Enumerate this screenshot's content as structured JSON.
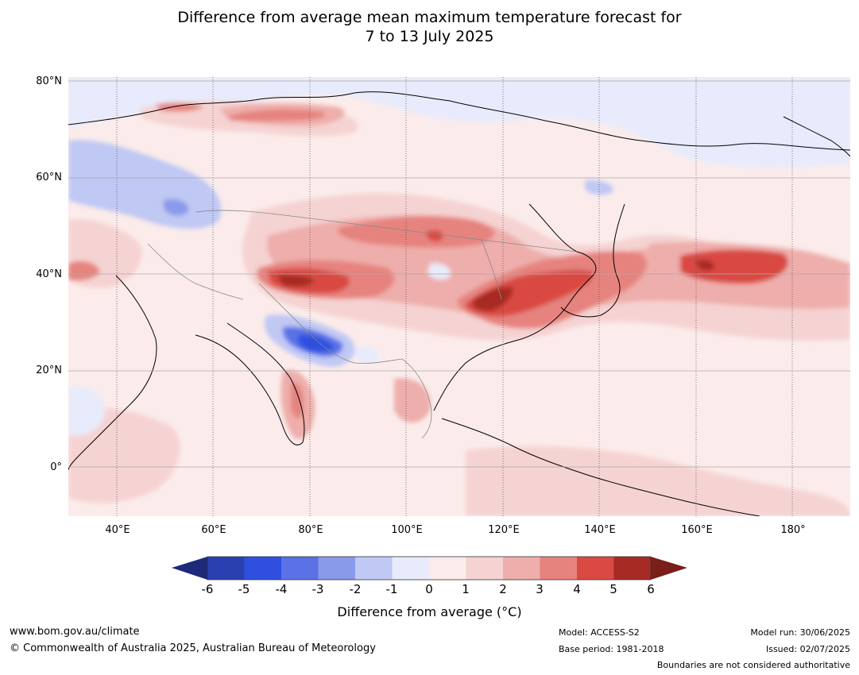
{
  "title": {
    "line1": "Difference from average mean maximum temperature forecast for",
    "line2": "7 to 13 July 2025"
  },
  "map": {
    "lat_labels": [
      "80°N",
      "60°N",
      "40°N",
      "20°N",
      "0°"
    ],
    "lon_labels": [
      "40°E",
      "60°E",
      "80°E",
      "100°E",
      "120°E",
      "140°E",
      "160°E",
      "180°"
    ],
    "lon_range": [
      30,
      192
    ],
    "lat_range": [
      -10,
      81
    ],
    "colors": {
      "neg6": "#1d2a7a",
      "neg5": "#2a3fb0",
      "neg4": "#2f4fe0",
      "neg3": "#5a72e6",
      "neg2": "#8a9aea",
      "neg1": "#c0c8f4",
      "zero_neg": "#e8ebfb",
      "zero_pos": "#fbeceb",
      "pos1": "#f5d3d2",
      "pos2": "#eeaeab",
      "pos3": "#e6837e",
      "pos4": "#d94a42",
      "pos5": "#a82a24",
      "pos6": "#7a1e1a"
    }
  },
  "colorbar": {
    "ticks": [
      "-6",
      "-5",
      "-4",
      "-3",
      "-2",
      "-1",
      "0",
      "1",
      "2",
      "3",
      "4",
      "5",
      "6"
    ],
    "label": "Difference from average (°C)"
  },
  "footer": {
    "website": "www.bom.gov.au/climate",
    "copyright": "© Commonwealth of Australia 2025, Australian Bureau of Meteorology",
    "model": "Model: ACCESS-S2",
    "base_period": "Base period: 1981-2018",
    "model_run": "Model run: 30/06/2025",
    "issued": "Issued: 02/07/2025",
    "disclaimer": "Boundaries are not considered authoritative"
  }
}
